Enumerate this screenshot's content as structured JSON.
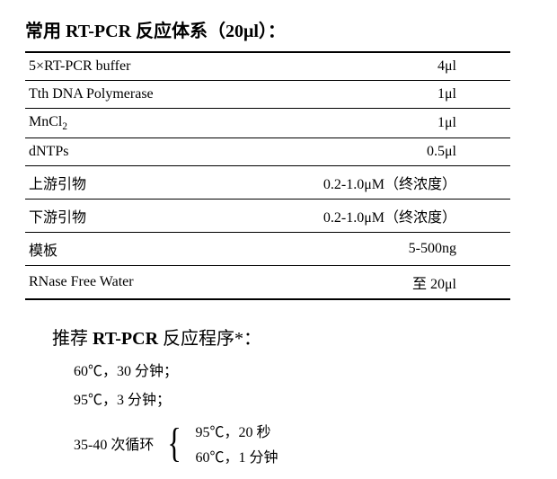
{
  "title": "常用 RT-PCR 反应体系（20μl）：",
  "table": {
    "rows": [
      {
        "name": "5×RT-PCR buffer",
        "amount": "4μl"
      },
      {
        "name": "Tth DNA Polymerase",
        "amount": "1μl"
      },
      {
        "name": "MnCl",
        "sub": "2",
        "amount": "1μl"
      },
      {
        "name": "dNTPs",
        "amount": "0.5μl"
      },
      {
        "name": "上游引物",
        "amount": "0.2-1.0μM（终浓度）"
      },
      {
        "name": "下游引物",
        "amount": "0.2-1.0μM（终浓度）"
      },
      {
        "name": "模板",
        "amount": "5-500ng"
      },
      {
        "name": "RNase Free Water",
        "amount": "至 20μl"
      }
    ]
  },
  "program": {
    "title_prefix": "推荐 ",
    "title_bold": "RT-PCR",
    "title_suffix": " 反应程序*：",
    "steps": [
      "60℃，30 分钟；",
      "95℃，3 分钟；"
    ],
    "cycle_label": "35-40 次循环",
    "cycle_steps": [
      "95℃，20 秒",
      "60℃，1 分钟"
    ]
  }
}
